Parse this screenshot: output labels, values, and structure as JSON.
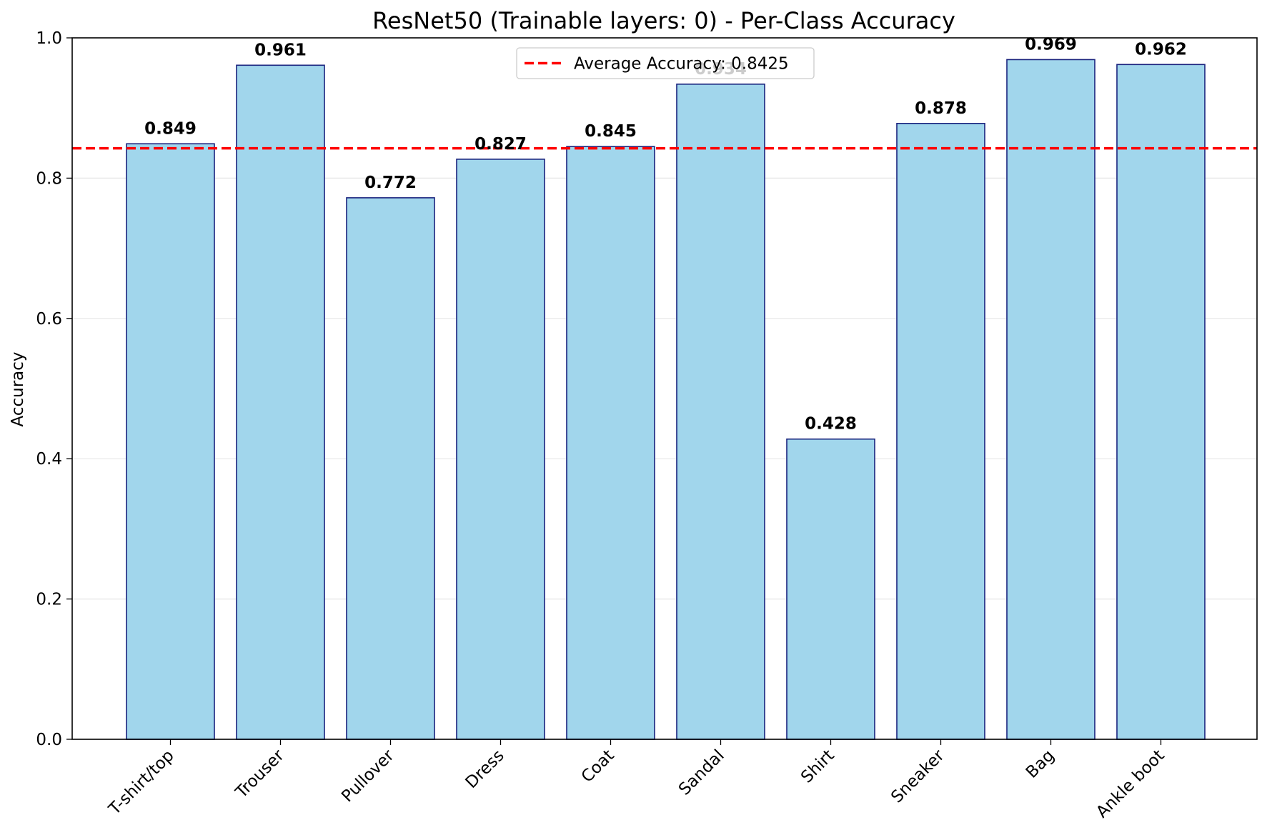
{
  "chart_data": {
    "type": "bar",
    "title": "ResNet50 (Trainable layers: 0) - Per-Class Accuracy",
    "xlabel": "",
    "ylabel": "Accuracy",
    "categories": [
      "T-shirt/top",
      "Trouser",
      "Pullover",
      "Dress",
      "Coat",
      "Sandal",
      "Shirt",
      "Sneaker",
      "Bag",
      "Ankle boot"
    ],
    "values": [
      0.849,
      0.961,
      0.772,
      0.827,
      0.845,
      0.934,
      0.428,
      0.878,
      0.969,
      0.962
    ],
    "value_labels": [
      "0.849",
      "0.961",
      "0.772",
      "0.827",
      "0.845",
      "0.934",
      "0.428",
      "0.878",
      "0.969",
      "0.962"
    ],
    "ylim": [
      0,
      1.0
    ],
    "yticks": [
      0.0,
      0.2,
      0.4,
      0.6,
      0.8,
      1.0
    ],
    "ytick_labels": [
      "0.0",
      "0.2",
      "0.4",
      "0.6",
      "0.8",
      "1.0"
    ],
    "grid": "y-axis, light gray",
    "reference_line": {
      "value": 0.8425,
      "label": "Average Accuracy: 0.8425",
      "style": "dashed",
      "color": "#ff0000"
    },
    "legend_placement": "upper center",
    "colors": {
      "bar_fill": "#a1d6ec",
      "bar_edge": "#1a237e",
      "average_line": "#ff0000",
      "grid": "#e6e6e6"
    }
  }
}
